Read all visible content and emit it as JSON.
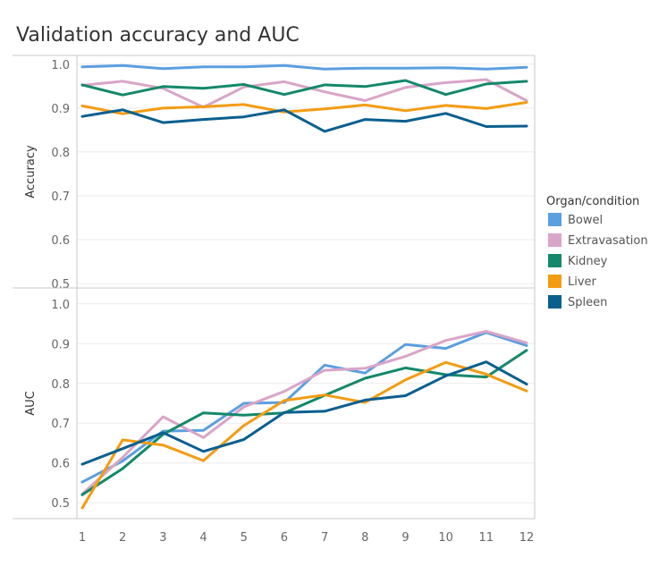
{
  "chart_data": {
    "type": "line",
    "title": "Validation accuracy and AUC",
    "x": [
      1,
      2,
      3,
      4,
      5,
      6,
      7,
      8,
      9,
      10,
      11,
      12
    ],
    "x_tick_labels": [
      "1",
      "2",
      "3",
      "4",
      "5",
      "6",
      "7",
      "8",
      "9",
      "10",
      "11",
      "12"
    ],
    "legend": {
      "title": "Organ/condition",
      "placement": "right",
      "entries": [
        {
          "name": "Bowel",
          "color": "#5b9fe0"
        },
        {
          "name": "Extravasation",
          "color": "#d9a5c8"
        },
        {
          "name": "Kidney",
          "color": "#14886a"
        },
        {
          "name": "Liver",
          "color": "#f39c12"
        },
        {
          "name": "Spleen",
          "color": "#0a5f8f"
        }
      ]
    },
    "panels": [
      {
        "ylabel": "Accuracy",
        "ylim": [
          0.49,
          1.02
        ],
        "yticks": [
          0.5,
          0.6,
          0.7,
          0.8,
          0.9,
          1.0
        ],
        "ytick_labels": [
          "0.5",
          "0.6",
          "0.7",
          "0.8",
          "0.9",
          "1.0"
        ],
        "grid": true,
        "series": [
          {
            "name": "Bowel",
            "color": "#5b9fe0",
            "values": [
              0.994,
              0.997,
              0.99,
              0.994,
              0.994,
              0.997,
              0.989,
              0.991,
              0.991,
              0.992,
              0.989,
              0.993
            ]
          },
          {
            "name": "Extravasation",
            "color": "#d9a5c8",
            "values": [
              0.952,
              0.961,
              0.945,
              0.902,
              0.948,
              0.96,
              0.937,
              0.917,
              0.947,
              0.958,
              0.965,
              0.917
            ]
          },
          {
            "name": "Kidney",
            "color": "#14886a",
            "values": [
              0.953,
              0.93,
              0.949,
              0.945,
              0.954,
              0.931,
              0.953,
              0.949,
              0.963,
              0.931,
              0.955,
              0.961
            ]
          },
          {
            "name": "Liver",
            "color": "#f39c12",
            "values": [
              0.905,
              0.887,
              0.9,
              0.903,
              0.908,
              0.891,
              0.898,
              0.907,
              0.894,
              0.906,
              0.899,
              0.913
            ]
          },
          {
            "name": "Spleen",
            "color": "#0a5f8f",
            "values": [
              0.881,
              0.896,
              0.867,
              0.874,
              0.88,
              0.896,
              0.847,
              0.874,
              0.87,
              0.888,
              0.858,
              0.859
            ]
          }
        ]
      },
      {
        "ylabel": "AUC",
        "ylim": [
          0.46,
          1.04
        ],
        "yticks": [
          0.5,
          0.6,
          0.7,
          0.8,
          0.9,
          1.0
        ],
        "ytick_labels": [
          "0.5",
          "0.6",
          "0.7",
          "0.8",
          "0.9",
          "1.0"
        ],
        "grid": true,
        "series": [
          {
            "name": "Bowel",
            "color": "#5b9fe0",
            "values": [
              0.552,
              0.605,
              0.68,
              0.682,
              0.75,
              0.752,
              0.846,
              0.826,
              0.898,
              0.888,
              0.928,
              0.895
            ]
          },
          {
            "name": "Extravasation",
            "color": "#d9a5c8",
            "values": [
              0.522,
              0.614,
              0.716,
              0.664,
              0.741,
              0.78,
              0.833,
              0.838,
              0.868,
              0.908,
              0.931,
              0.902
            ]
          },
          {
            "name": "Kidney",
            "color": "#14886a",
            "values": [
              0.52,
              0.586,
              0.672,
              0.726,
              0.72,
              0.726,
              0.77,
              0.813,
              0.839,
              0.822,
              0.816,
              0.883
            ]
          },
          {
            "name": "Liver",
            "color": "#f39c12",
            "values": [
              0.487,
              0.658,
              0.645,
              0.606,
              0.694,
              0.757,
              0.771,
              0.752,
              0.809,
              0.853,
              0.823,
              0.781
            ]
          },
          {
            "name": "Spleen",
            "color": "#0a5f8f",
            "values": [
              0.597,
              0.636,
              0.676,
              0.629,
              0.659,
              0.727,
              0.73,
              0.758,
              0.769,
              0.819,
              0.854,
              0.798
            ]
          }
        ]
      }
    ]
  }
}
